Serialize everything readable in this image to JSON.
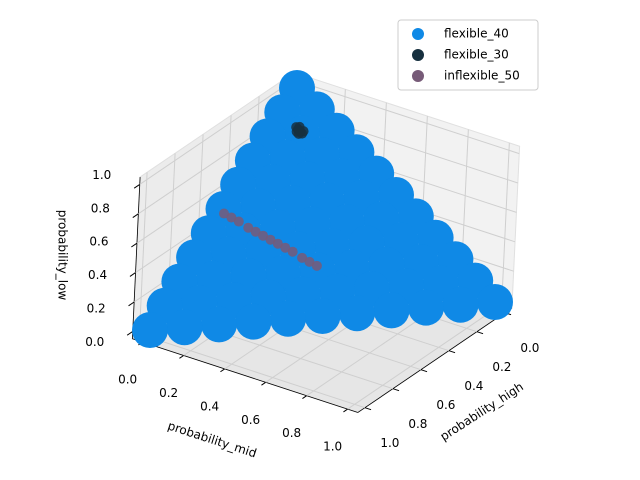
{
  "chart_data": {
    "type": "scatter3d",
    "xlabel": "probability_high",
    "ylabel": "probability_mid",
    "zlabel": "probability_low",
    "xlim": [
      -0.05,
      1.05
    ],
    "ylim": [
      -0.05,
      1.05
    ],
    "zlim": [
      -0.05,
      1.05
    ],
    "xticks": [
      {
        "value": 0,
        "label": "0.0"
      },
      0.2,
      0.4,
      0.6,
      0.8,
      {
        "value": 1,
        "label": "1.0"
      }
    ],
    "yticks": [
      {
        "value": 0,
        "label": "0.0"
      },
      0.2,
      0.4,
      0.6,
      0.8,
      {
        "value": 1,
        "label": "1.0"
      }
    ],
    "zticks": [
      {
        "value": 0,
        "label": "0.0"
      },
      0.2,
      0.4,
      0.6,
      0.8,
      {
        "value": 1,
        "label": "1.0"
      }
    ],
    "grid": true,
    "legend": "upper right",
    "series": [
      {
        "name": "flexible_40",
        "color": "#0f89e6",
        "x": [
          0,
          0,
          0,
          0,
          0,
          0,
          0,
          0,
          0,
          0,
          0,
          0.1,
          0.1,
          0.1,
          0.1,
          0.1,
          0.1,
          0.1,
          0.1,
          0.1,
          0.1,
          0.2,
          0.2,
          0.2,
          0.2,
          0.2,
          0.2,
          0.2,
          0.2,
          0.2,
          0.3,
          0.3,
          0.3,
          0.3,
          0.3,
          0.3,
          0.3,
          0.3,
          0.4,
          0.4,
          0.4,
          0.4,
          0.4,
          0.4,
          0.4,
          0.5,
          0.5,
          0.5,
          0.5,
          0.5,
          0.5,
          0.6,
          0.6,
          0.6,
          0.6,
          0.6,
          0.7,
          0.7,
          0.7,
          0.7,
          0.8,
          0.8,
          0.8,
          0.9,
          0.9,
          1
        ],
        "y": [
          0,
          0.1,
          0.2,
          0.3,
          0.4,
          0.5,
          0.6,
          0.7,
          0.8,
          0.9,
          1,
          0,
          0.1,
          0.2,
          0.3,
          0.4,
          0.5,
          0.6,
          0.7,
          0.8,
          0.9,
          0,
          0.1,
          0.2,
          0.3,
          0.4,
          0.5,
          0.6,
          0.7,
          0.8,
          0,
          0.1,
          0.2,
          0.3,
          0.4,
          0.5,
          0.6,
          0.7,
          0,
          0.1,
          0.2,
          0.3,
          0.4,
          0.5,
          0.6,
          0,
          0.1,
          0.2,
          0.3,
          0.4,
          0.5,
          0,
          0.1,
          0.2,
          0.3,
          0.4,
          0,
          0.1,
          0.2,
          0.3,
          0,
          0.1,
          0.2,
          0,
          0.1,
          0
        ],
        "z": [
          1,
          0.9,
          0.8,
          0.7,
          0.6,
          0.5,
          0.4,
          0.3,
          0.2,
          0.1,
          0,
          0.9,
          0.8,
          0.7,
          0.6,
          0.5,
          0.4,
          0.3,
          0.2,
          0.1,
          0,
          0.8,
          0.7,
          0.6,
          0.5,
          0.4,
          0.3,
          0.2,
          0.1,
          0,
          0.7,
          0.6,
          0.5,
          0.4,
          0.3,
          0.2,
          0.1,
          0,
          0.6,
          0.5,
          0.4,
          0.3,
          0.2,
          0.1,
          0,
          0.5,
          0.4,
          0.3,
          0.2,
          0.1,
          0,
          0.4,
          0.3,
          0.2,
          0.1,
          0,
          0.3,
          0.2,
          0.1,
          0,
          0.2,
          0.1,
          0,
          0.1,
          0,
          0
        ]
      },
      {
        "name": "flexible_30",
        "color": "#17303f",
        "x": [
          0.09,
          0.1,
          0.11,
          0.1,
          0.09,
          0.11,
          0.1,
          0.1
        ],
        "y": [
          0.08,
          0.08,
          0.09,
          0.1,
          0.1,
          0.08,
          0.09,
          0.07
        ],
        "z": [
          0.83,
          0.82,
          0.8,
          0.8,
          0.81,
          0.81,
          0.81,
          0.83
        ]
      },
      {
        "name": "inflexible_50",
        "color": "#775b78",
        "x": [
          0.51,
          0.5,
          0.49,
          0.48,
          0.47,
          0.46,
          0.45,
          0.44,
          0.43,
          0.42,
          0.41,
          0.4,
          0.39
        ],
        "y": [
          0.01,
          0.04,
          0.07,
          0.11,
          0.14,
          0.17,
          0.2,
          0.23,
          0.26,
          0.29,
          0.33,
          0.36,
          0.39
        ],
        "z": [
          0.48,
          0.46,
          0.44,
          0.41,
          0.39,
          0.37,
          0.35,
          0.33,
          0.31,
          0.29,
          0.26,
          0.24,
          0.22
        ]
      }
    ]
  }
}
